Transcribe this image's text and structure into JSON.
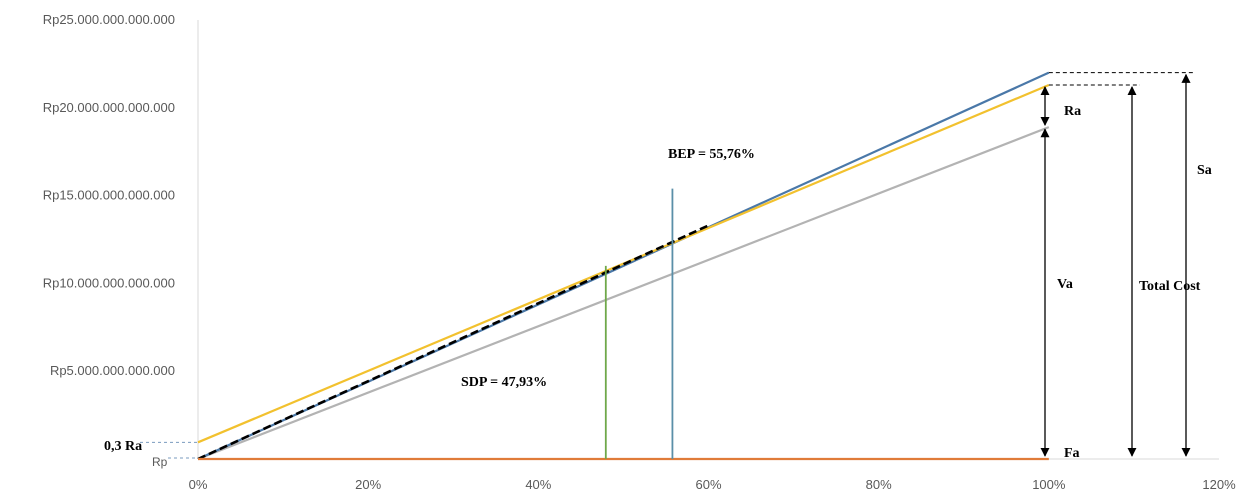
{
  "chart_data": {
    "type": "line",
    "x": [
      0,
      100
    ],
    "xlim": [
      0,
      120
    ],
    "ylim": [
      0,
      25000000000000
    ],
    "x_ticks": [
      0,
      20,
      40,
      60,
      80,
      100,
      120
    ],
    "x_tick_labels": [
      "0%",
      "20%",
      "40%",
      "60%",
      "80%",
      "100%",
      "120%"
    ],
    "y_ticks": [
      5000000000000,
      10000000000000,
      15000000000000,
      20000000000000,
      25000000000000
    ],
    "y_tick_labels": [
      "Rp5.000.000.000.000",
      "Rp10.000.000.000.000",
      "Rp15.000.000.000.000",
      "Rp20.000.000.000.000",
      "Rp25.000.000.000.000"
    ],
    "grid": false,
    "series": [
      {
        "key": "sales",
        "color": "#4a78a8",
        "values": [
          0,
          22000000000000
        ]
      },
      {
        "key": "semi_variable",
        "color": "#f2c12e",
        "values": [
          950000000000,
          21300000000000
        ]
      },
      {
        "key": "variable",
        "color": "#b3b3b3",
        "values": [
          0,
          18900000000000
        ]
      },
      {
        "key": "fixed",
        "color": "#e07b39",
        "values": [
          0,
          0
        ]
      },
      {
        "key": "total_cost_dashed",
        "color": "#000000",
        "dashed": true,
        "x": [
          0,
          60
        ],
        "values": [
          0,
          13300000000000
        ]
      }
    ],
    "markers": [
      {
        "key": "bep",
        "label": "BEP = 55,76%",
        "x": 55.76,
        "y_top": 15400000000000,
        "color": "#5a8fa8"
      },
      {
        "key": "sdp",
        "label": "SDP = 47,93%",
        "x": 47.93,
        "y_top": 11000000000000,
        "color": "#6fa84a"
      }
    ],
    "annotations": {
      "ra_0_3": "0,3 Ra",
      "rp": "Rp",
      "ra": "Ra",
      "sa": "Sa",
      "va": "Va",
      "fa": "Fa",
      "total_cost": "Total Cost"
    }
  }
}
